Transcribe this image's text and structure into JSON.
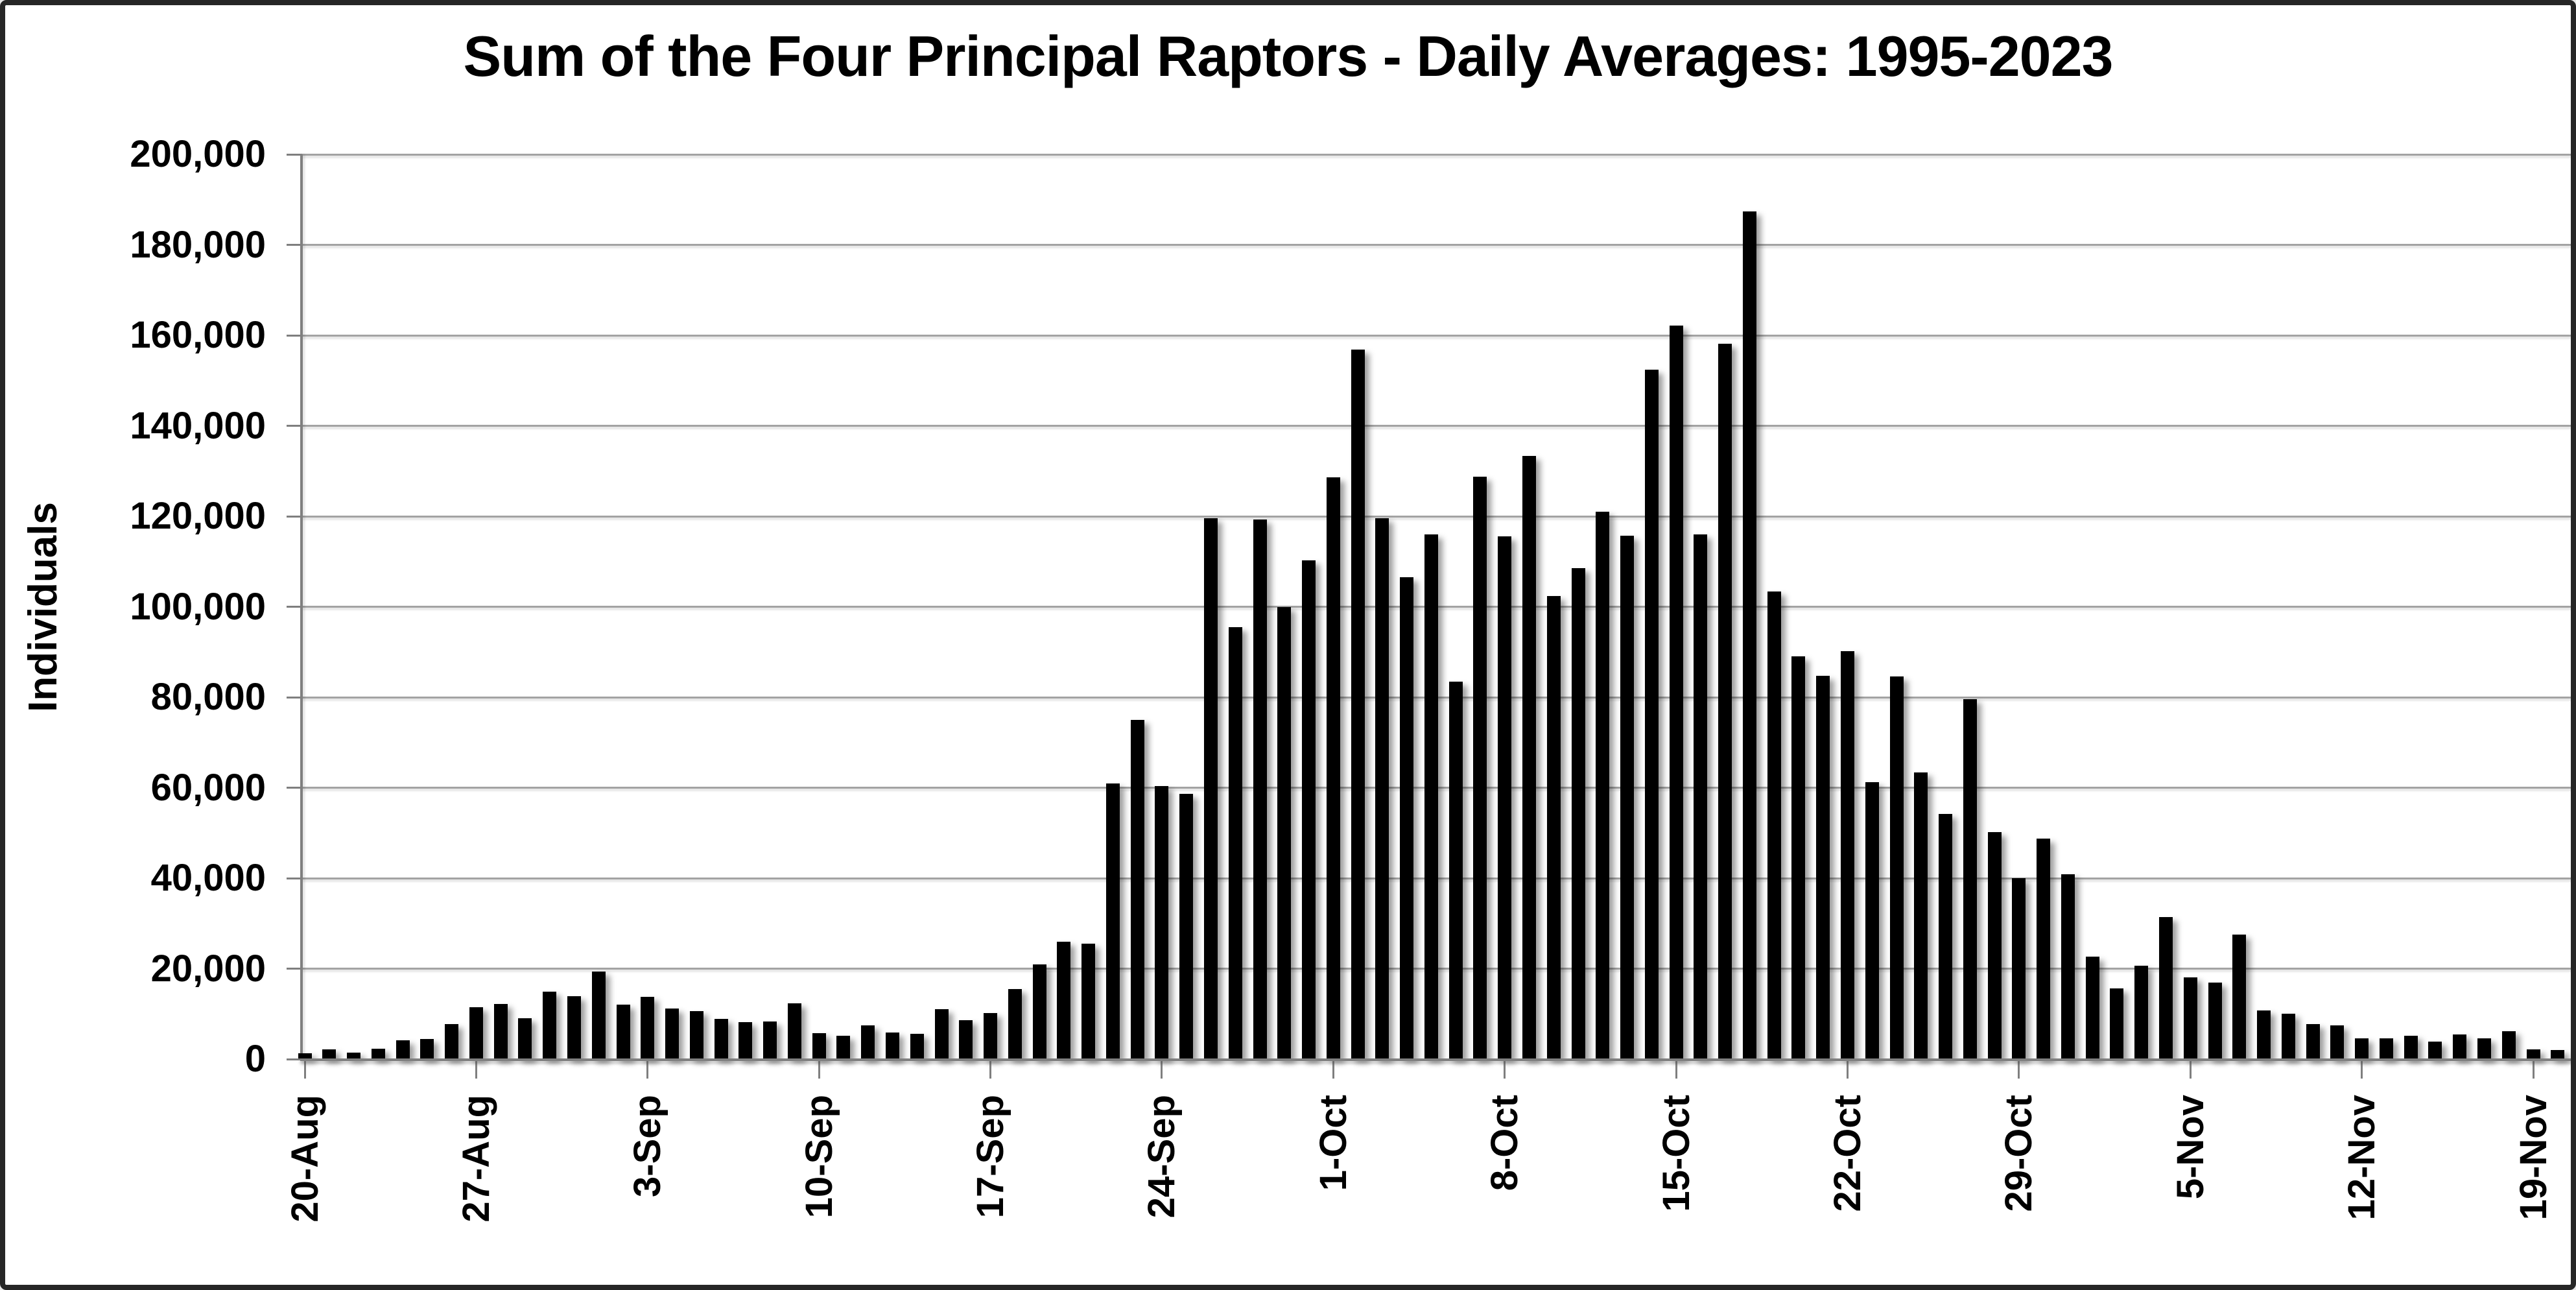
{
  "chart_data": {
    "type": "bar",
    "title": "Sum of the Four Principal Raptors - Daily Averages: 1995-2023",
    "ylabel": "Individuals",
    "xlabel": "",
    "ylim": [
      0,
      200000
    ],
    "ytick_step": 20000,
    "grid": true,
    "legend": null,
    "bar_color": "#000000",
    "ytick_labels": [
      "0",
      "20,000",
      "40,000",
      "60,000",
      "80,000",
      "100,000",
      "120,000",
      "140,000",
      "160,000",
      "180,000",
      "200,000"
    ],
    "xtick_every": 7,
    "xtick_labels": [
      "20-Aug",
      "27-Aug",
      "3-Sep",
      "10-Sep",
      "17-Sep",
      "24-Sep",
      "1-Oct",
      "8-Oct",
      "15-Oct",
      "22-Oct",
      "29-Oct",
      "5-Nov",
      "12-Nov",
      "19-Nov"
    ],
    "x": [
      "20-Aug",
      "21-Aug",
      "22-Aug",
      "23-Aug",
      "24-Aug",
      "25-Aug",
      "26-Aug",
      "27-Aug",
      "28-Aug",
      "29-Aug",
      "30-Aug",
      "31-Aug",
      "1-Sep",
      "2-Sep",
      "3-Sep",
      "4-Sep",
      "5-Sep",
      "6-Sep",
      "7-Sep",
      "8-Sep",
      "9-Sep",
      "10-Sep",
      "11-Sep",
      "12-Sep",
      "13-Sep",
      "14-Sep",
      "15-Sep",
      "16-Sep",
      "17-Sep",
      "18-Sep",
      "19-Sep",
      "20-Sep",
      "21-Sep",
      "22-Sep",
      "23-Sep",
      "24-Sep",
      "25-Sep",
      "26-Sep",
      "27-Sep",
      "28-Sep",
      "29-Sep",
      "30-Sep",
      "1-Oct",
      "2-Oct",
      "3-Oct",
      "4-Oct",
      "5-Oct",
      "6-Oct",
      "7-Oct",
      "8-Oct",
      "9-Oct",
      "10-Oct",
      "11-Oct",
      "12-Oct",
      "13-Oct",
      "14-Oct",
      "15-Oct",
      "16-Oct",
      "17-Oct",
      "18-Oct",
      "19-Oct",
      "20-Oct",
      "21-Oct",
      "22-Oct",
      "23-Oct",
      "24-Oct",
      "25-Oct",
      "26-Oct",
      "27-Oct",
      "28-Oct",
      "29-Oct",
      "30-Oct",
      "31-Oct",
      "1-Nov",
      "2-Nov",
      "3-Nov",
      "4-Nov",
      "5-Nov",
      "6-Nov",
      "7-Nov",
      "8-Nov",
      "9-Nov",
      "10-Nov",
      "11-Nov",
      "12-Nov",
      "13-Nov",
      "14-Nov",
      "15-Nov",
      "16-Nov",
      "17-Nov",
      "18-Nov",
      "19-Nov",
      "20-Nov"
    ],
    "values": [
      1300,
      2200,
      1500,
      2300,
      4200,
      4500,
      7700,
      11400,
      12200,
      9000,
      14900,
      13900,
      19300,
      12000,
      13800,
      11200,
      10600,
      8900,
      8200,
      8300,
      12300,
      5700,
      5100,
      7500,
      5900,
      5600,
      11000,
      8600,
      10200,
      15500,
      20900,
      25900,
      25500,
      61000,
      75000,
      60300,
      58700,
      119500,
      95500,
      119300,
      100000,
      110200,
      128600,
      156800,
      119600,
      106500,
      116000,
      83400,
      128700,
      115500,
      133300,
      102300,
      108500,
      121000,
      115700,
      152400,
      162200,
      116000,
      158200,
      187400,
      103300,
      89100,
      84800,
      90200,
      61200,
      84600,
      63300,
      54200,
      79500,
      50200,
      40000,
      48800,
      40800,
      22700,
      15600,
      20700,
      31400,
      18100,
      16900,
      27500,
      10700,
      10000,
      7700,
      7500,
      4600,
      4600,
      5200,
      3800,
      5500,
      4600,
      6200,
      2200,
      2000
    ]
  },
  "colors": {
    "bar": "#000000",
    "gridline": "#a3a3a3",
    "axis": "#7f7f7f",
    "frame": "#262626",
    "background": "#ffffff",
    "text": "#000000"
  }
}
